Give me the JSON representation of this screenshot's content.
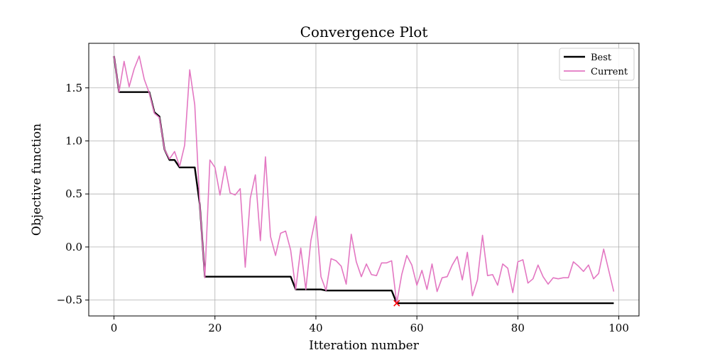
{
  "chart_data": {
    "type": "line",
    "title": "Convergence Plot",
    "xlabel": "Itteration number",
    "ylabel": "Objective function",
    "xlim": [
      -5,
      104
    ],
    "ylim": [
      -0.65,
      1.92
    ],
    "x_ticks": [
      0,
      20,
      40,
      60,
      80,
      100
    ],
    "x_tick_labels": [
      "0",
      "20",
      "40",
      "60",
      "80",
      "100"
    ],
    "y_ticks": [
      -0.5,
      0.0,
      0.5,
      1.0,
      1.5
    ],
    "y_tick_labels": [
      "−0.5",
      "0.0",
      "0.5",
      "1.0",
      "1.5"
    ],
    "grid": true,
    "legend_position": "top-right",
    "series": [
      {
        "name": "Best",
        "color": "#000000",
        "values": [
          1.8,
          1.46,
          1.46,
          1.46,
          1.46,
          1.46,
          1.46,
          1.46,
          1.27,
          1.23,
          0.92,
          0.82,
          0.82,
          0.75,
          0.75,
          0.75,
          0.75,
          0.4,
          -0.28,
          -0.28,
          -0.28,
          -0.28,
          -0.28,
          -0.28,
          -0.28,
          -0.28,
          -0.28,
          -0.28,
          -0.28,
          -0.28,
          -0.28,
          -0.28,
          -0.28,
          -0.28,
          -0.28,
          -0.28,
          -0.4,
          -0.4,
          -0.4,
          -0.4,
          -0.4,
          -0.4,
          -0.41,
          -0.41,
          -0.41,
          -0.41,
          -0.41,
          -0.41,
          -0.41,
          -0.41,
          -0.41,
          -0.41,
          -0.41,
          -0.41,
          -0.41,
          -0.41,
          -0.53,
          -0.53,
          -0.53,
          -0.53,
          -0.53,
          -0.53,
          -0.53,
          -0.53,
          -0.53,
          -0.53,
          -0.53,
          -0.53,
          -0.53,
          -0.53,
          -0.53,
          -0.53,
          -0.53,
          -0.53,
          -0.53,
          -0.53,
          -0.53,
          -0.53,
          -0.53,
          -0.53,
          -0.53,
          -0.53,
          -0.53,
          -0.53,
          -0.53,
          -0.53,
          -0.53,
          -0.53,
          -0.53,
          -0.53,
          -0.53,
          -0.53,
          -0.53,
          -0.53,
          -0.53,
          -0.53,
          -0.53,
          -0.53,
          -0.53,
          -0.53
        ]
      },
      {
        "name": "Current",
        "color": "#e377c2",
        "values": [
          1.8,
          1.46,
          1.75,
          1.51,
          1.68,
          1.8,
          1.58,
          1.45,
          1.26,
          1.22,
          0.92,
          0.83,
          0.9,
          0.76,
          0.96,
          1.67,
          1.34,
          0.4,
          -0.29,
          0.82,
          0.75,
          0.49,
          0.76,
          0.51,
          0.49,
          0.55,
          -0.19,
          0.46,
          0.68,
          0.06,
          0.85,
          0.1,
          -0.08,
          0.13,
          0.15,
          -0.03,
          -0.4,
          -0.01,
          -0.4,
          0.06,
          0.29,
          -0.28,
          -0.41,
          -0.11,
          -0.13,
          -0.18,
          -0.35,
          0.12,
          -0.14,
          -0.28,
          -0.16,
          -0.26,
          -0.27,
          -0.15,
          -0.15,
          -0.13,
          -0.53,
          -0.26,
          -0.08,
          -0.17,
          -0.36,
          -0.22,
          -0.4,
          -0.16,
          -0.42,
          -0.29,
          -0.28,
          -0.17,
          -0.09,
          -0.31,
          -0.05,
          -0.46,
          -0.31,
          0.11,
          -0.27,
          -0.26,
          -0.36,
          -0.16,
          -0.2,
          -0.43,
          -0.14,
          -0.12,
          -0.34,
          -0.3,
          -0.17,
          -0.28,
          -0.35,
          -0.29,
          -0.3,
          -0.29,
          -0.29,
          -0.14,
          -0.18,
          -0.23,
          -0.17,
          -0.3,
          -0.25,
          -0.02,
          -0.22,
          -0.42
        ]
      }
    ],
    "marker": {
      "x": 56,
      "y": -0.53,
      "color": "#ff0000",
      "symbol": "x"
    }
  }
}
